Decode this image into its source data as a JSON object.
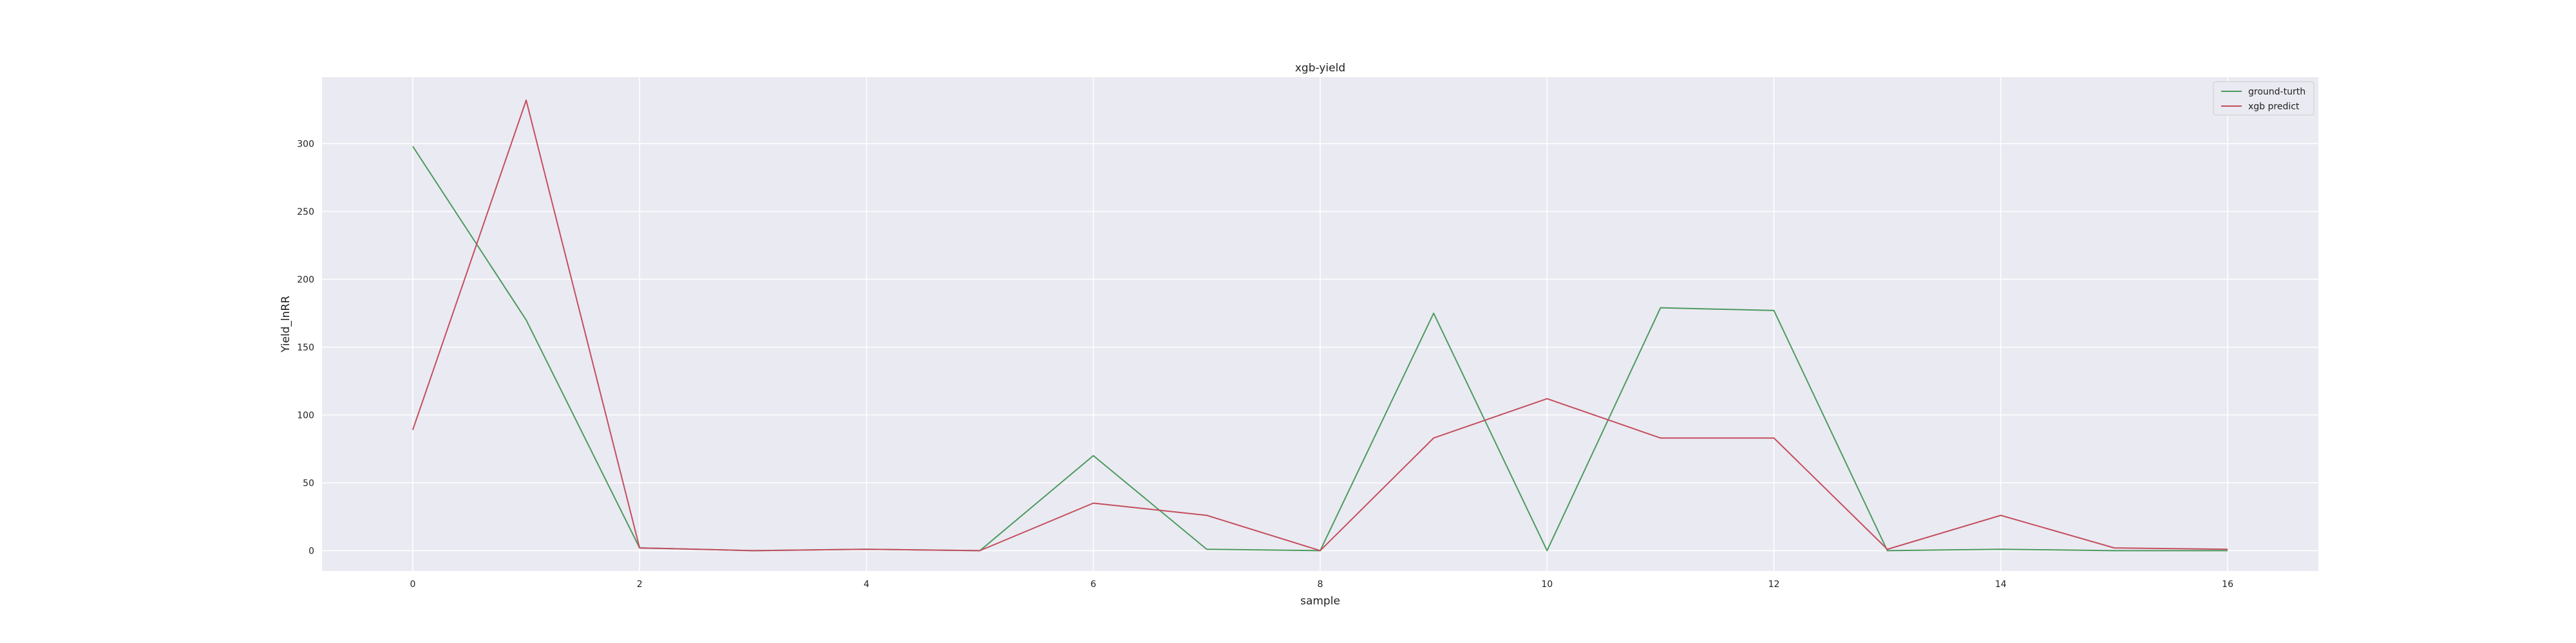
{
  "chart_data": {
    "type": "line",
    "title": "xgb-yield",
    "xlabel": "sample",
    "ylabel": "Yield_lnRR",
    "xlim": [
      -0.8,
      16.8
    ],
    "ylim": [
      -15,
      349
    ],
    "xticks": [
      0,
      2,
      4,
      6,
      8,
      10,
      12,
      14,
      16
    ],
    "yticks": [
      0,
      50,
      100,
      150,
      200,
      250,
      300
    ],
    "grid": true,
    "legend_position": "top-right",
    "x": [
      0,
      1,
      2,
      3,
      4,
      5,
      6,
      7,
      8,
      9,
      10,
      11,
      12,
      13,
      14,
      15,
      16
    ],
    "series": [
      {
        "name": "ground-turth",
        "color": "#4c9a5e",
        "values": [
          298,
          170,
          2,
          0,
          1,
          0,
          70,
          1,
          0,
          175,
          0,
          179,
          177,
          0,
          1,
          0,
          0
        ]
      },
      {
        "name": "xgb predict",
        "color": "#c44e5e",
        "values": [
          89,
          332,
          2,
          0,
          1,
          0,
          35,
          26,
          0,
          83,
          112,
          83,
          83,
          1,
          26,
          2,
          1
        ]
      }
    ],
    "colors": {
      "plot_background": "#eaeaf2",
      "grid": "#ffffff",
      "figure_background": "#ffffff"
    }
  }
}
